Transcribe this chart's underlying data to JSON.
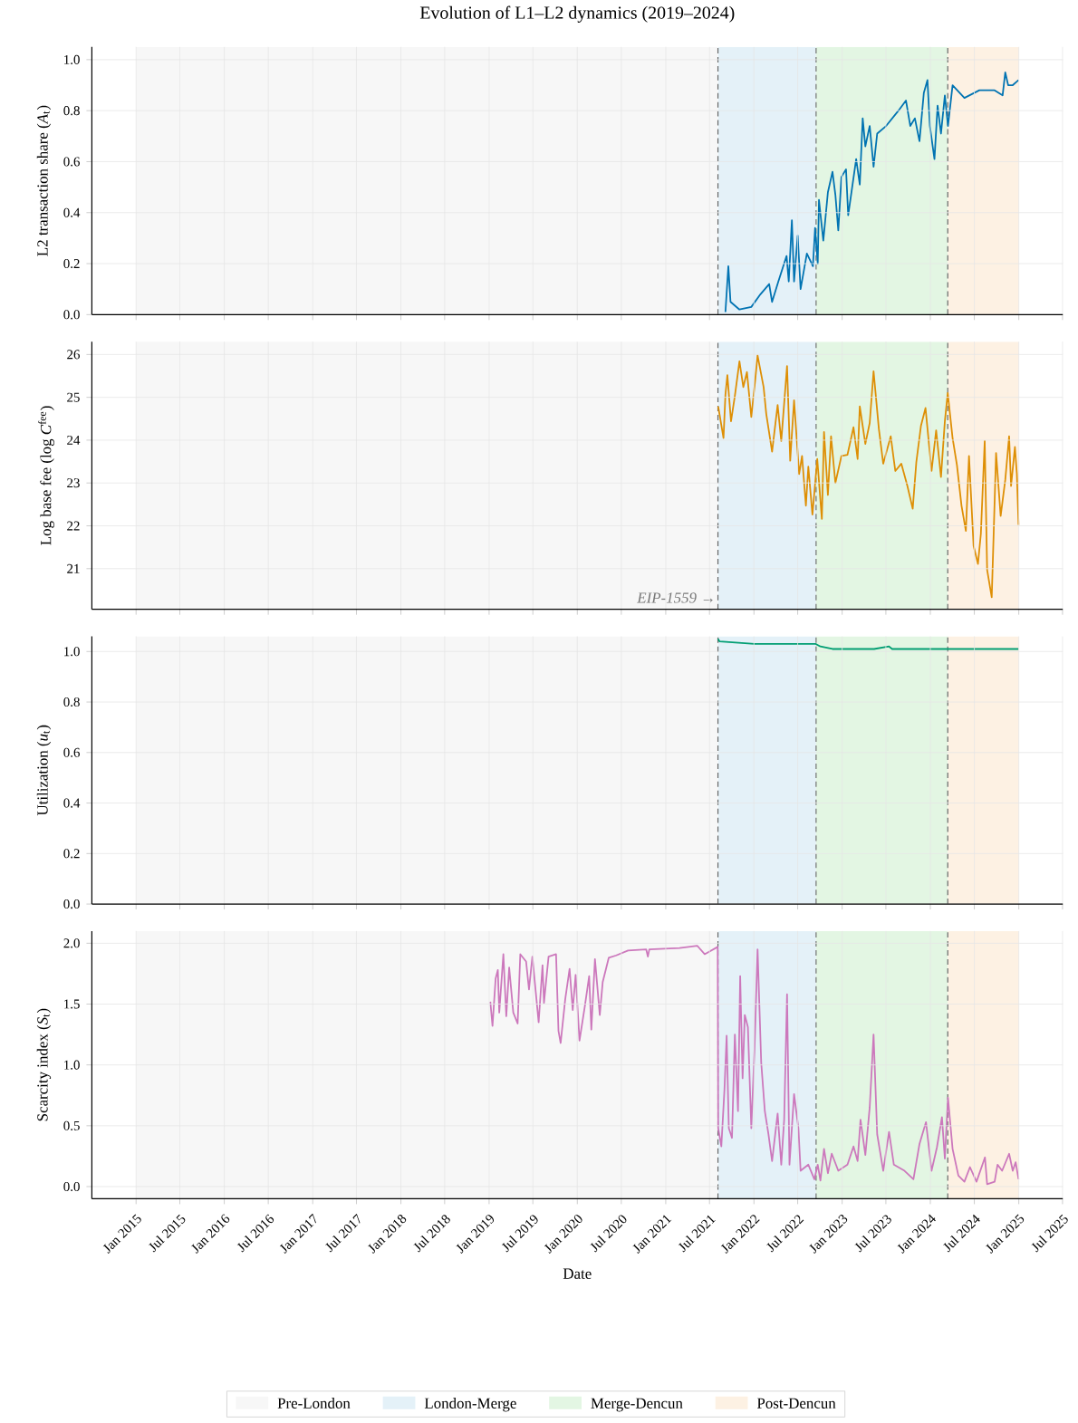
{
  "chart_data": [
    {
      "type": "line",
      "title": "Evolution of L1–L2 dynamics (2019–2024)",
      "ylabel": "L2 transaction share (*A*$_{t}$)",
      "color": "#0173b2",
      "x": [
        "2021-09-05",
        "2021-09-17",
        "2021-09-26",
        "2021-11-02",
        "2021-12-21",
        "2022-01-28",
        "2022-03-05",
        "2022-03-17",
        "2022-04-12",
        "2022-05-16",
        "2022-05-25",
        "2022-06-07",
        "2022-06-16",
        "2022-07-01",
        "2022-07-13",
        "2022-08-08",
        "2022-09-02",
        "2022-09-11",
        "2022-09-22",
        "2022-09-27",
        "2022-10-15",
        "2022-11-03",
        "2022-11-22",
        "2022-12-04",
        "2022-12-16",
        "2022-12-29",
        "2023-01-17",
        "2023-01-26",
        "2023-02-28",
        "2023-03-15",
        "2023-03-27",
        "2023-04-07",
        "2023-04-25",
        "2023-05-11",
        "2023-05-26",
        "2023-07-02",
        "2023-08-22",
        "2023-09-22",
        "2023-10-10",
        "2023-10-29",
        "2023-11-17",
        "2023-12-05",
        "2023-12-20",
        "2023-12-30",
        "2024-01-18",
        "2024-01-31",
        "2024-02-14",
        "2024-03-01",
        "2024-03-14",
        "2024-04-02",
        "2024-05-21",
        "2024-07-22",
        "2024-09-23",
        "2024-10-26",
        "2024-11-06",
        "2024-11-18",
        "2024-12-07",
        "2024-12-31"
      ],
      "values": [
        0.01,
        0.19,
        0.05,
        0.02,
        0.03,
        0.08,
        0.12,
        0.05,
        0.13,
        0.23,
        0.13,
        0.37,
        0.13,
        0.31,
        0.1,
        0.24,
        0.19,
        0.34,
        0.2,
        0.45,
        0.29,
        0.48,
        0.56,
        0.47,
        0.33,
        0.54,
        0.57,
        0.39,
        0.61,
        0.51,
        0.77,
        0.66,
        0.74,
        0.58,
        0.71,
        0.74,
        0.8,
        0.84,
        0.74,
        0.77,
        0.68,
        0.87,
        0.92,
        0.74,
        0.61,
        0.82,
        0.71,
        0.86,
        0.74,
        0.9,
        0.85,
        0.88,
        0.88,
        0.86,
        0.95,
        0.9,
        0.9,
        0.92
      ],
      "xlim": [
        "2014-07-02",
        "2025-07-02"
      ],
      "ylim": [
        0,
        1.05
      ],
      "xticks": [
        {
          "value": "2015-01-01",
          "label": null
        },
        {
          "value": "2015-07-01",
          "label": null
        },
        {
          "value": "2016-01-01",
          "label": null
        },
        {
          "value": "2016-07-01",
          "label": null
        },
        {
          "value": "2017-01-01",
          "label": null
        },
        {
          "value": "2017-07-01",
          "label": null
        },
        {
          "value": "2018-01-01",
          "label": null
        },
        {
          "value": "2018-07-01",
          "label": null
        },
        {
          "value": "2019-01-01",
          "label": null
        },
        {
          "value": "2019-07-01",
          "label": null
        },
        {
          "value": "2020-01-01",
          "label": null
        },
        {
          "value": "2020-07-01",
          "label": null
        },
        {
          "value": "2021-01-01",
          "label": null
        },
        {
          "value": "2021-07-01",
          "label": null
        },
        {
          "value": "2022-01-01",
          "label": null
        },
        {
          "value": "2022-07-01",
          "label": null
        },
        {
          "value": "2023-01-01",
          "label": null
        },
        {
          "value": "2023-07-01",
          "label": null
        },
        {
          "value": "2024-01-01",
          "label": null
        },
        {
          "value": "2024-07-01",
          "label": null
        },
        {
          "value": "2025-01-01",
          "label": null
        },
        {
          "value": "2025-07-01",
          "label": null
        }
      ],
      "yticks": [
        {
          "value": 0,
          "label": "0.0"
        },
        0.2,
        0.4,
        0.6,
        0.8,
        {
          "value": 1,
          "label": "1.0"
        }
      ],
      "grid": true,
      "tick_labels": "y",
      "bands": [
        {
          "axis": "x",
          "from": "2015-01-01",
          "to": "2021-08-05",
          "color": "#f7f7f7"
        },
        {
          "axis": "x",
          "from": "2021-08-05",
          "to": "2022-09-15",
          "color": "#e4f1f8"
        },
        {
          "axis": "x",
          "from": "2022-09-15",
          "to": "2024-03-13",
          "color": "#e3f6e3"
        },
        {
          "axis": "x",
          "from": "2024-03-13",
          "to": "2025-01-01",
          "color": "#fdf1e3"
        }
      ],
      "ref_lines": [
        {
          "axis": "x",
          "value": "2021-08-05",
          "color": "#666666",
          "line_style": "dashed"
        },
        {
          "axis": "x",
          "value": "2022-09-15",
          "color": "#666666",
          "line_style": "dashed"
        },
        {
          "axis": "x",
          "value": "2024-03-13",
          "color": "#666666",
          "line_style": "dashed"
        }
      ]
    },
    {
      "type": "line",
      "ylabel": "Log base fee (log *C*$^{fee}$)",
      "color": "#de8f05",
      "x": [
        "2021-08-06",
        "2021-08-28",
        "2021-09-05",
        "2021-09-13",
        "2021-09-28",
        "2021-10-14",
        "2021-11-02",
        "2021-11-18",
        "2021-12-03",
        "2021-12-21",
        "2022-01-07",
        "2022-01-16",
        "2022-02-10",
        "2022-02-21",
        "2022-03-17",
        "2022-04-09",
        "2022-04-24",
        "2022-05-18",
        "2022-05-31",
        "2022-06-16",
        "2022-07-07",
        "2022-07-19",
        "2022-08-04",
        "2022-08-14",
        "2022-08-31",
        "2022-09-20",
        "2022-10-09",
        "2022-10-18",
        "2022-11-03",
        "2022-11-16",
        "2022-12-04",
        "2022-12-29",
        "2023-01-23",
        "2023-02-17",
        "2023-03-06",
        "2023-03-15",
        "2023-04-07",
        "2023-04-25",
        "2023-05-11",
        "2023-06-02",
        "2023-06-20",
        "2023-07-21",
        "2023-08-09",
        "2023-09-03",
        "2023-09-28",
        "2023-10-20",
        "2023-11-04",
        "2023-11-23",
        "2023-12-12",
        "2024-01-06",
        "2024-01-25",
        "2024-02-14",
        "2024-03-01",
        "2024-03-13",
        "2024-04-02",
        "2024-04-20",
        "2024-05-09",
        "2024-05-27",
        "2024-06-09",
        "2024-06-28",
        "2024-07-16",
        "2024-07-28",
        "2024-08-13",
        "2024-08-23",
        "2024-09-11",
        "2024-09-19",
        "2024-09-29",
        "2024-10-18",
        "2024-11-06",
        "2024-11-22",
        "2024-11-30",
        "2024-12-16",
        "2024-12-24",
        "2024-12-31"
      ],
      "values": [
        24.79,
        24.05,
        25.07,
        25.52,
        24.44,
        25.03,
        25.84,
        25.24,
        25.59,
        24.54,
        25.45,
        25.98,
        25.24,
        24.61,
        23.73,
        24.82,
        23.98,
        25.73,
        23.52,
        24.93,
        23.21,
        23.63,
        22.47,
        23.38,
        22.26,
        23.56,
        22.16,
        24.19,
        22.72,
        24.09,
        23.0,
        23.63,
        23.66,
        24.3,
        23.56,
        24.79,
        23.91,
        24.4,
        25.61,
        24.26,
        23.45,
        24.09,
        23.28,
        23.45,
        22.93,
        22.4,
        23.49,
        24.33,
        24.75,
        23.28,
        24.23,
        23.14,
        24.44,
        25.1,
        24.05,
        23.42,
        22.47,
        21.88,
        23.63,
        21.53,
        21.11,
        21.81,
        23.98,
        20.97,
        20.33,
        21.81,
        23.7,
        22.23,
        23.07,
        24.09,
        22.93,
        23.84,
        23.21,
        22.02
      ],
      "xlim": [
        "2014-07-02",
        "2025-07-02"
      ],
      "ylim": [
        20.05,
        26.3
      ],
      "xticks": [
        {
          "value": "2015-01-01",
          "label": null
        },
        {
          "value": "2015-07-01",
          "label": null
        },
        {
          "value": "2016-01-01",
          "label": null
        },
        {
          "value": "2016-07-01",
          "label": null
        },
        {
          "value": "2017-01-01",
          "label": null
        },
        {
          "value": "2017-07-01",
          "label": null
        },
        {
          "value": "2018-01-01",
          "label": null
        },
        {
          "value": "2018-07-01",
          "label": null
        },
        {
          "value": "2019-01-01",
          "label": null
        },
        {
          "value": "2019-07-01",
          "label": null
        },
        {
          "value": "2020-01-01",
          "label": null
        },
        {
          "value": "2020-07-01",
          "label": null
        },
        {
          "value": "2021-01-01",
          "label": null
        },
        {
          "value": "2021-07-01",
          "label": null
        },
        {
          "value": "2022-01-01",
          "label": null
        },
        {
          "value": "2022-07-01",
          "label": null
        },
        {
          "value": "2023-01-01",
          "label": null
        },
        {
          "value": "2023-07-01",
          "label": null
        },
        {
          "value": "2024-01-01",
          "label": null
        },
        {
          "value": "2024-07-01",
          "label": null
        },
        {
          "value": "2025-01-01",
          "label": null
        },
        {
          "value": "2025-07-01",
          "label": null
        }
      ],
      "yticks": [
        21,
        22,
        23,
        24,
        25,
        26
      ],
      "grid": true,
      "tick_labels": "y",
      "bands": [
        {
          "axis": "x",
          "from": "2015-01-01",
          "to": "2021-08-05",
          "color": "#f7f7f7"
        },
        {
          "axis": "x",
          "from": "2021-08-05",
          "to": "2022-09-15",
          "color": "#e4f1f8"
        },
        {
          "axis": "x",
          "from": "2022-09-15",
          "to": "2024-03-13",
          "color": "#e3f6e3"
        },
        {
          "axis": "x",
          "from": "2024-03-13",
          "to": "2025-01-01",
          "color": "#fdf1e3"
        }
      ],
      "ref_lines": [
        {
          "axis": "x",
          "value": "2021-08-05",
          "color": "#666666",
          "line_style": "dashed"
        },
        {
          "axis": "x",
          "value": "2022-09-15",
          "color": "#666666",
          "line_style": "dashed"
        },
        {
          "axis": "x",
          "value": "2024-03-13",
          "color": "#666666",
          "line_style": "dashed"
        }
      ],
      "annotations": [
        {
          "text": "EIP-1559 →",
          "x": "2021-08-05",
          "y": 20.32
        }
      ]
    },
    {
      "type": "line",
      "ylabel": "Utilization (*u*$_{t}$)",
      "color": "#029e73",
      "x": [
        "2021-08-05",
        "2021-08-12",
        "2022-01-03",
        "2022-09-14",
        "2022-10-03",
        "2022-11-22",
        "2023-05-13",
        "2023-07-14",
        "2023-07-27",
        "2024-01-18",
        "2024-03-19",
        "2024-09-23",
        "2024-12-31"
      ],
      "values": [
        1.05,
        1.04,
        1.03,
        1.03,
        1.02,
        1.01,
        1.01,
        1.02,
        1.01,
        1.01,
        1.01,
        1.01,
        1.01
      ],
      "xlim": [
        "2014-07-02",
        "2025-07-02"
      ],
      "ylim": [
        0,
        1.06
      ],
      "xticks": [
        {
          "value": "2015-01-01",
          "label": null
        },
        {
          "value": "2015-07-01",
          "label": null
        },
        {
          "value": "2016-01-01",
          "label": null
        },
        {
          "value": "2016-07-01",
          "label": null
        },
        {
          "value": "2017-01-01",
          "label": null
        },
        {
          "value": "2017-07-01",
          "label": null
        },
        {
          "value": "2018-01-01",
          "label": null
        },
        {
          "value": "2018-07-01",
          "label": null
        },
        {
          "value": "2019-01-01",
          "label": null
        },
        {
          "value": "2019-07-01",
          "label": null
        },
        {
          "value": "2020-01-01",
          "label": null
        },
        {
          "value": "2020-07-01",
          "label": null
        },
        {
          "value": "2021-01-01",
          "label": null
        },
        {
          "value": "2021-07-01",
          "label": null
        },
        {
          "value": "2022-01-01",
          "label": null
        },
        {
          "value": "2022-07-01",
          "label": null
        },
        {
          "value": "2023-01-01",
          "label": null
        },
        {
          "value": "2023-07-01",
          "label": null
        },
        {
          "value": "2024-01-01",
          "label": null
        },
        {
          "value": "2024-07-01",
          "label": null
        },
        {
          "value": "2025-01-01",
          "label": null
        },
        {
          "value": "2025-07-01",
          "label": null
        }
      ],
      "yticks": [
        {
          "value": 0,
          "label": "0.0"
        },
        0.2,
        0.4,
        0.6,
        0.8,
        {
          "value": 1,
          "label": "1.0"
        }
      ],
      "grid": true,
      "tick_labels": "y",
      "bands": [
        {
          "axis": "x",
          "from": "2015-01-01",
          "to": "2021-08-05",
          "color": "#f7f7f7"
        },
        {
          "axis": "x",
          "from": "2021-08-05",
          "to": "2022-09-15",
          "color": "#e4f1f8"
        },
        {
          "axis": "x",
          "from": "2022-09-15",
          "to": "2024-03-13",
          "color": "#e3f6e3"
        },
        {
          "axis": "x",
          "from": "2024-03-13",
          "to": "2025-01-01",
          "color": "#fdf1e3"
        }
      ],
      "ref_lines": [
        {
          "axis": "x",
          "value": "2021-08-05",
          "color": "#666666",
          "line_style": "dashed"
        },
        {
          "axis": "x",
          "value": "2022-09-15",
          "color": "#666666",
          "line_style": "dashed"
        },
        {
          "axis": "x",
          "value": "2024-03-13",
          "color": "#666666",
          "line_style": "dashed"
        }
      ]
    },
    {
      "type": "line",
      "xlabel": "Date",
      "ylabel": "Scarcity index (*S*$_{t}$)",
      "color": "#cc78bc",
      "x": [
        "2019-01-06",
        "2019-01-15",
        "2019-01-28",
        "2019-02-06",
        "2019-02-12",
        "2019-03-01",
        "2019-03-13",
        "2019-03-25",
        "2019-04-11",
        "2019-04-29",
        "2019-05-10",
        "2019-06-03",
        "2019-06-15",
        "2019-06-29",
        "2019-07-25",
        "2019-08-10",
        "2019-08-16",
        "2019-09-04",
        "2019-10-05",
        "2019-10-15",
        "2019-10-24",
        "2019-11-12",
        "2019-11-30",
        "2019-12-13",
        "2019-12-25",
        "2020-01-10",
        "2020-02-01",
        "2020-02-19",
        "2020-02-28",
        "2020-03-14",
        "2020-04-03",
        "2020-04-15",
        "2020-05-10",
        "2020-06-10",
        "2020-07-29",
        "2020-10-12",
        "2020-10-19",
        "2020-10-25",
        "2021-02-27",
        "2021-05-11",
        "2021-06-11",
        "2021-08-04",
        "2021-08-06",
        "2021-08-19",
        "2021-09-01",
        "2021-09-10",
        "2021-09-19",
        "2021-10-02",
        "2021-10-14",
        "2021-10-27",
        "2021-11-05",
        "2021-11-15",
        "2021-11-24",
        "2021-12-07",
        "2021-12-21",
        "2022-01-03",
        "2022-01-16",
        "2022-01-31",
        "2022-02-15",
        "2022-03-02",
        "2022-03-17",
        "2022-04-09",
        "2022-04-24",
        "2022-05-06",
        "2022-05-18",
        "2022-05-28",
        "2022-06-16",
        "2022-07-04",
        "2022-07-13",
        "2022-08-14",
        "2022-09-08",
        "2022-09-22",
        "2022-10-03",
        "2022-10-18",
        "2022-11-03",
        "2022-11-19",
        "2022-12-16",
        "2023-01-23",
        "2023-02-17",
        "2023-03-06",
        "2023-03-18",
        "2023-04-07",
        "2023-04-25",
        "2023-05-11",
        "2023-05-26",
        "2023-06-20",
        "2023-07-14",
        "2023-08-03",
        "2023-09-16",
        "2023-10-23",
        "2023-11-17",
        "2023-12-14",
        "2024-01-06",
        "2024-01-28",
        "2024-02-18",
        "2024-03-01",
        "2024-03-14",
        "2024-04-02",
        "2024-04-26",
        "2024-05-21",
        "2024-06-13",
        "2024-07-10",
        "2024-08-14",
        "2024-08-23",
        "2024-09-23",
        "2024-10-05",
        "2024-10-24",
        "2024-11-22",
        "2024-12-07",
        "2024-12-19",
        "2024-12-31"
      ],
      "values": [
        1.52,
        1.32,
        1.71,
        1.78,
        1.43,
        1.91,
        1.4,
        1.8,
        1.43,
        1.34,
        1.91,
        1.85,
        1.62,
        1.89,
        1.35,
        1.82,
        1.51,
        1.89,
        1.91,
        1.28,
        1.18,
        1.54,
        1.79,
        1.45,
        1.74,
        1.2,
        1.48,
        1.73,
        1.29,
        1.87,
        1.41,
        1.68,
        1.88,
        1.9,
        1.94,
        1.95,
        1.89,
        1.95,
        1.96,
        1.98,
        1.91,
        1.97,
        0.48,
        0.33,
        0.8,
        1.24,
        0.48,
        0.4,
        1.25,
        0.62,
        1.73,
        0.89,
        1.41,
        1.31,
        0.48,
        1.11,
        1.95,
        1.02,
        0.62,
        0.43,
        0.21,
        0.6,
        0.18,
        0.55,
        1.58,
        0.18,
        0.76,
        0.48,
        0.13,
        0.18,
        0.06,
        0.18,
        0.05,
        0.31,
        0.11,
        0.27,
        0.13,
        0.18,
        0.33,
        0.21,
        0.55,
        0.26,
        0.65,
        1.25,
        0.43,
        0.13,
        0.45,
        0.18,
        0.13,
        0.06,
        0.35,
        0.53,
        0.13,
        0.32,
        0.57,
        0.23,
        0.73,
        0.31,
        0.09,
        0.04,
        0.16,
        0.04,
        0.24,
        0.02,
        0.04,
        0.18,
        0.13,
        0.27,
        0.13,
        0.2,
        0.06
      ],
      "xlim": [
        "2014-07-02",
        "2025-07-02"
      ],
      "ylim": [
        -0.1,
        2.1
      ],
      "xticks": [
        {
          "value": "2015-01-01",
          "label": "Jan 2015"
        },
        {
          "value": "2015-07-01",
          "label": "Jul 2015"
        },
        {
          "value": "2016-01-01",
          "label": "Jan 2016"
        },
        {
          "value": "2016-07-01",
          "label": "Jul 2016"
        },
        {
          "value": "2017-01-01",
          "label": "Jan 2017"
        },
        {
          "value": "2017-07-01",
          "label": "Jul 2017"
        },
        {
          "value": "2018-01-01",
          "label": "Jan 2018"
        },
        {
          "value": "2018-07-01",
          "label": "Jul 2018"
        },
        {
          "value": "2019-01-01",
          "label": "Jan 2019"
        },
        {
          "value": "2019-07-01",
          "label": "Jul 2019"
        },
        {
          "value": "2020-01-01",
          "label": "Jan 2020"
        },
        {
          "value": "2020-07-01",
          "label": "Jul 2020"
        },
        {
          "value": "2021-01-01",
          "label": "Jan 2021"
        },
        {
          "value": "2021-07-01",
          "label": "Jul 2021"
        },
        {
          "value": "2022-01-01",
          "label": "Jan 2022"
        },
        {
          "value": "2022-07-01",
          "label": "Jul 2022"
        },
        {
          "value": "2023-01-01",
          "label": "Jan 2023"
        },
        {
          "value": "2023-07-01",
          "label": "Jul 2023"
        },
        {
          "value": "2024-01-01",
          "label": "Jan 2024"
        },
        {
          "value": "2024-07-01",
          "label": "Jul 2024"
        },
        {
          "value": "2025-01-01",
          "label": "Jan 2025"
        },
        {
          "value": "2025-07-01",
          "label": "Jul 2025"
        }
      ],
      "yticks": [
        {
          "value": 0,
          "label": "0.0"
        },
        0.5,
        {
          "value": 1,
          "label": "1.0"
        },
        1.5,
        {
          "value": 2,
          "label": "2.0"
        }
      ],
      "grid": true,
      "legend": "bottom",
      "bands": [
        {
          "axis": "x",
          "from": "2015-01-01",
          "to": "2021-08-05",
          "color": "#f7f7f7",
          "label": "Pre-London"
        },
        {
          "axis": "x",
          "from": "2021-08-05",
          "to": "2022-09-15",
          "color": "#e4f1f8",
          "label": "London-Merge"
        },
        {
          "axis": "x",
          "from": "2022-09-15",
          "to": "2024-03-13",
          "color": "#e3f6e3",
          "label": "Merge-Dencun"
        },
        {
          "axis": "x",
          "from": "2024-03-13",
          "to": "2025-01-01",
          "color": "#fdf1e3",
          "label": "Post-Dencun"
        }
      ],
      "ref_lines": [
        {
          "axis": "x",
          "value": "2021-08-05",
          "color": "#666666",
          "line_style": "dashed"
        },
        {
          "axis": "x",
          "value": "2022-09-15",
          "color": "#666666",
          "line_style": "dashed"
        },
        {
          "axis": "x",
          "value": "2024-03-13",
          "color": "#666666",
          "line_style": "dashed"
        }
      ]
    }
  ]
}
